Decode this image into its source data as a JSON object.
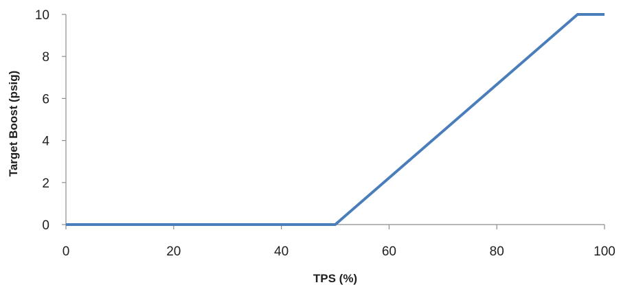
{
  "chart_data": {
    "type": "line",
    "title": "",
    "xlabel": "TPS (%)",
    "ylabel": "Target Boost (psig)",
    "xlim": [
      0,
      100
    ],
    "ylim": [
      0,
      10
    ],
    "x_ticks": [
      0,
      20,
      40,
      60,
      80,
      100
    ],
    "y_ticks": [
      0,
      2,
      4,
      6,
      8,
      10
    ],
    "grid": false,
    "legend": "none",
    "series": [
      {
        "color": "#4a7ebb",
        "x": [
          0,
          50,
          95,
          100
        ],
        "y": [
          0,
          0,
          10,
          10
        ]
      }
    ]
  }
}
